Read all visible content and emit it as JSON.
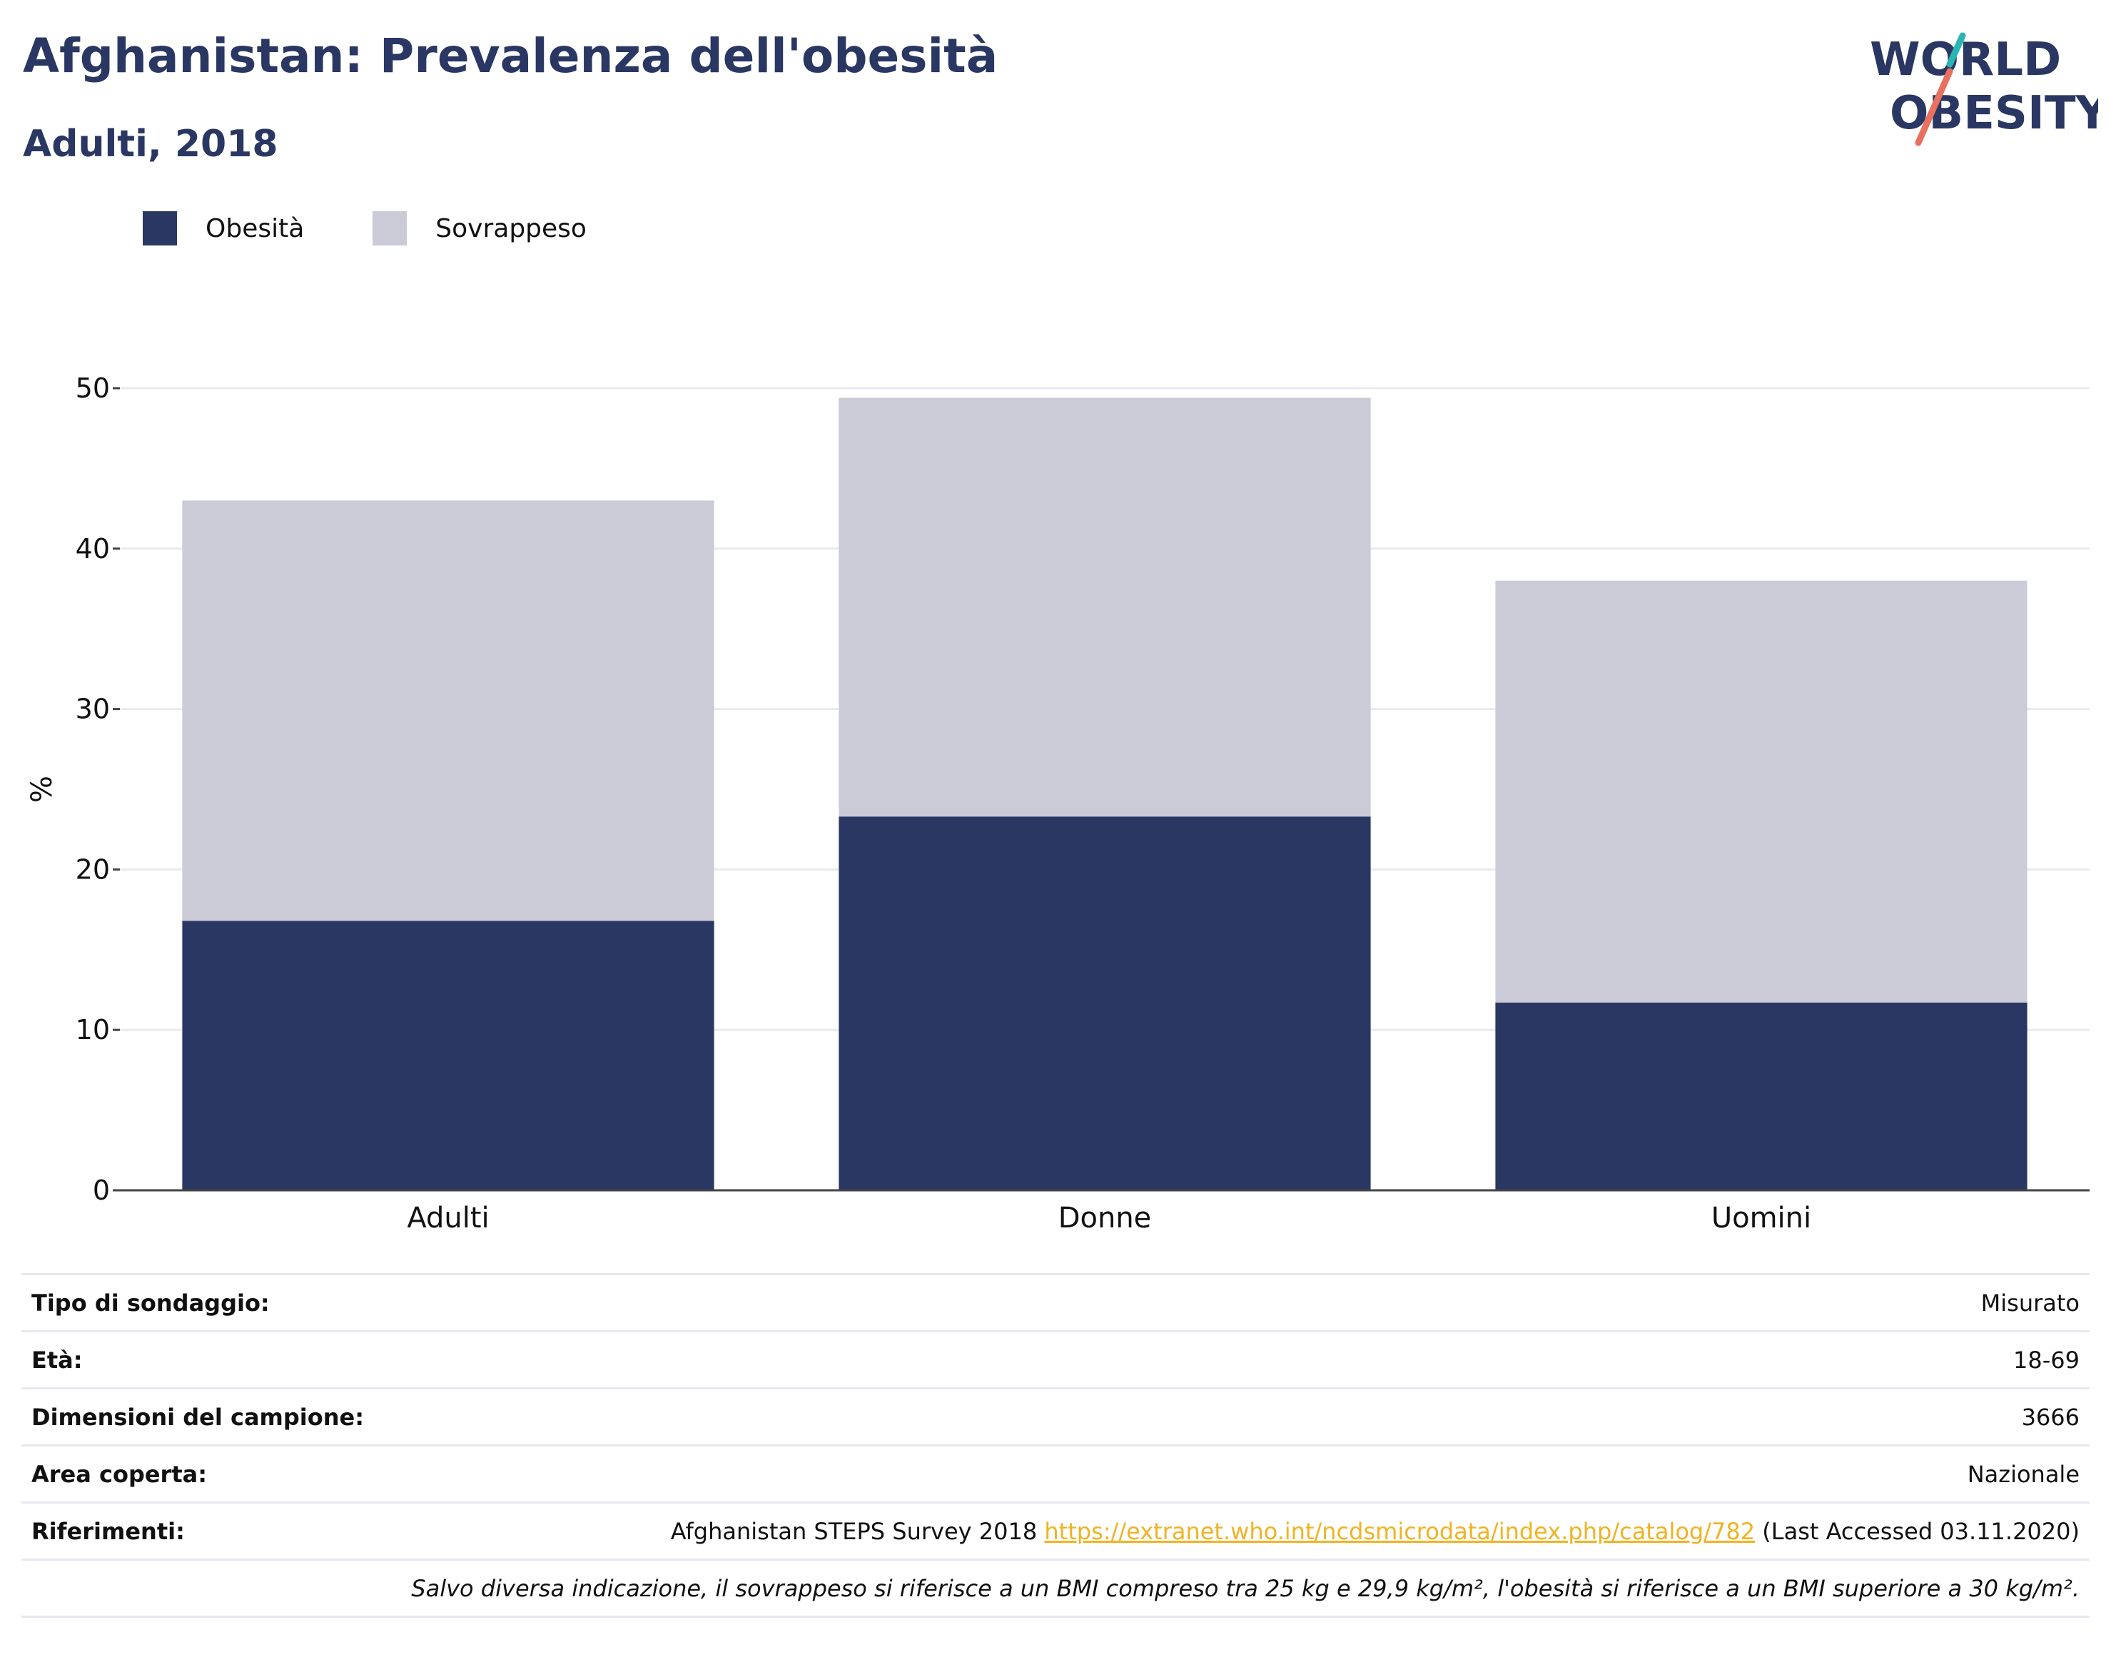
{
  "header": {
    "title": "Afghanistan: Prevalenza dell'obesità",
    "subtitle": "Adulti, 2018"
  },
  "logo": {
    "line1": "WORLD",
    "line2": "OBESITY"
  },
  "colors": {
    "obesity": "#2a3763",
    "overweight": "#cacbd7",
    "accent_teal": "#2ab5b5",
    "accent_coral": "#e8705f",
    "link": "#f0b323"
  },
  "legend": [
    {
      "label": "Obesità",
      "color": "#2a3763"
    },
    {
      "label": "Sovrappeso",
      "color": "#cacbd7"
    }
  ],
  "chart_data": {
    "type": "bar",
    "stacked": true,
    "categories": [
      "Adulti",
      "Donne",
      "Uomini"
    ],
    "series": [
      {
        "name": "Obesità",
        "values": [
          16.8,
          23.3,
          11.7
        ]
      },
      {
        "name": "Sovrappeso",
        "values": [
          26.2,
          26.1,
          26.3
        ]
      }
    ],
    "ylabel": "%",
    "ylim": [
      0,
      50
    ],
    "yticks": [
      0,
      10,
      20,
      30,
      40,
      50
    ],
    "grid": true,
    "legend_position": "top-left"
  },
  "info": {
    "rows": [
      {
        "key": "Tipo di sondaggio:",
        "value": "Misurato"
      },
      {
        "key": "Età:",
        "value": "18-69"
      },
      {
        "key": "Dimensioni del campione:",
        "value": "3666"
      },
      {
        "key": "Area coperta:",
        "value": "Nazionale"
      }
    ],
    "references": {
      "key": "Riferimenti:",
      "text": "Afghanistan STEPS Survey 2018",
      "url": "https://extranet.who.int/ncdsmicrodata/index.php/catalog/782",
      "accessed": "(Last Accessed 03.11.2020)"
    },
    "note": "Salvo diversa indicazione, il sovrappeso si riferisce a un BMI compreso tra 25 kg e 29,9 kg/m², l'obesità si riferisce a un BMI superiore a 30 kg/m²."
  }
}
